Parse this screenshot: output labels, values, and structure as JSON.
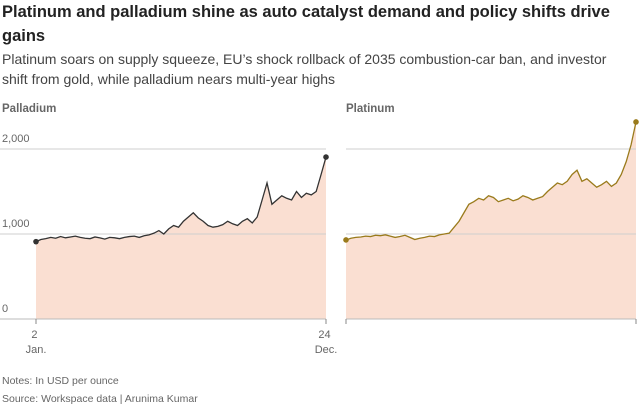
{
  "title": "Platinum and palladium shine as auto catalyst demand and policy shifts drive gains",
  "subtitle": "Platinum soars on supply squeeze, EU’s shock rollback of 2035 combustion-car ban, and investor shift from gold, while palladium nears multi-year highs",
  "notes": "Notes: In USD per ounce",
  "source": "Source: Workspace data | Arunima Kumar",
  "chart_data": [
    {
      "type": "area",
      "title": "Palladium",
      "color": "#333333",
      "title_color": "#333333",
      "fill": "#fadfd2",
      "categories": [
        "2 Jan.",
        null,
        null,
        null,
        null,
        null,
        null,
        null,
        null,
        null,
        null,
        null,
        null,
        null,
        null,
        null,
        null,
        null,
        null,
        null,
        null,
        null,
        null,
        null,
        null,
        null,
        null,
        null,
        null,
        null,
        null,
        null,
        null,
        null,
        null,
        null,
        null,
        null,
        null,
        null,
        null,
        null,
        null,
        null,
        null,
        null,
        null,
        null,
        null,
        null,
        null,
        null,
        null,
        null,
        null,
        null,
        null,
        null,
        null,
        "24 Dec."
      ],
      "values": [
        910,
        935,
        945,
        960,
        950,
        970,
        955,
        965,
        975,
        960,
        950,
        945,
        965,
        955,
        940,
        960,
        955,
        945,
        960,
        970,
        975,
        960,
        980,
        990,
        1010,
        1040,
        1000,
        1060,
        1100,
        1080,
        1150,
        1200,
        1250,
        1190,
        1150,
        1100,
        1080,
        1090,
        1110,
        1150,
        1120,
        1100,
        1150,
        1180,
        1130,
        1200,
        1400,
        1600,
        1350,
        1400,
        1450,
        1420,
        1400,
        1500,
        1430,
        1480,
        1460,
        1500,
        1700,
        1905
      ],
      "ylim": [
        0,
        2400
      ],
      "yticks": [
        0,
        {
          "value": 1000,
          "label": "1,000"
        },
        {
          "value": 2000,
          "label": "2,000"
        }
      ],
      "grid": true
    },
    {
      "type": "area",
      "title": "Platinum",
      "color": "#9a7b1c",
      "title_color": "#9a7b1c",
      "fill": "#fadfd2",
      "values": [
        930,
        950,
        960,
        965,
        975,
        970,
        985,
        980,
        990,
        975,
        960,
        970,
        985,
        960,
        935,
        950,
        960,
        975,
        970,
        990,
        1000,
        1010,
        1080,
        1150,
        1250,
        1350,
        1380,
        1420,
        1400,
        1450,
        1430,
        1380,
        1400,
        1420,
        1390,
        1410,
        1450,
        1430,
        1400,
        1420,
        1440,
        1500,
        1550,
        1600,
        1580,
        1620,
        1700,
        1750,
        1620,
        1650,
        1600,
        1550,
        1580,
        1620,
        1560,
        1600,
        1700,
        1850,
        2050,
        2318
      ],
      "ylim": [
        0,
        2400
      ],
      "yticks": [
        0,
        1000,
        2000
      ],
      "grid": true
    }
  ]
}
